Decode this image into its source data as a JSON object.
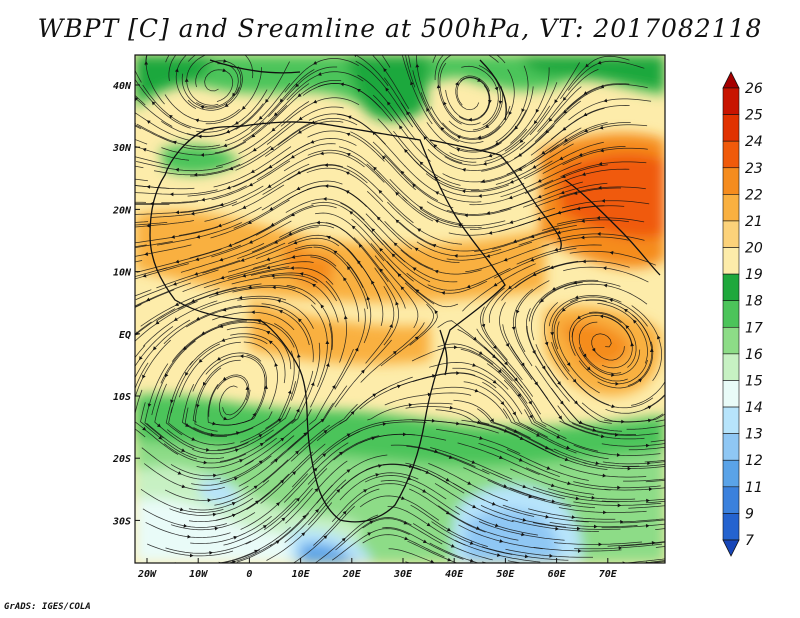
{
  "title": "WBPT [C] and Sreamline at 500hPa, VT: 2017082118",
  "credit": "GrADS: IGES/COLA",
  "map": {
    "lon_labels": [
      "20W",
      "10W",
      "0",
      "10E",
      "20E",
      "30E",
      "40E",
      "50E",
      "60E",
      "70E"
    ],
    "lat_labels": [
      "40N",
      "30N",
      "20N",
      "10N",
      "EQ",
      "10S",
      "20S",
      "30S"
    ]
  },
  "colorbar": {
    "labels": [
      "26",
      "25",
      "24",
      "23",
      "22",
      "21",
      "20",
      "19",
      "18",
      "17",
      "16",
      "15",
      "14",
      "13",
      "12",
      "11",
      "9",
      "7"
    ],
    "colors": [
      "#a50000",
      "#c81400",
      "#e13200",
      "#f05a0a",
      "#f58c1e",
      "#f9b040",
      "#fcd27a",
      "#fdecaa",
      "#1fa83c",
      "#4cc45a",
      "#8ddc87",
      "#c7f1c3",
      "#e9fbf8",
      "#b7e4fb",
      "#8fc7f4",
      "#5aa3e8",
      "#3b81dd",
      "#2463cf",
      "#1746b8"
    ]
  }
}
